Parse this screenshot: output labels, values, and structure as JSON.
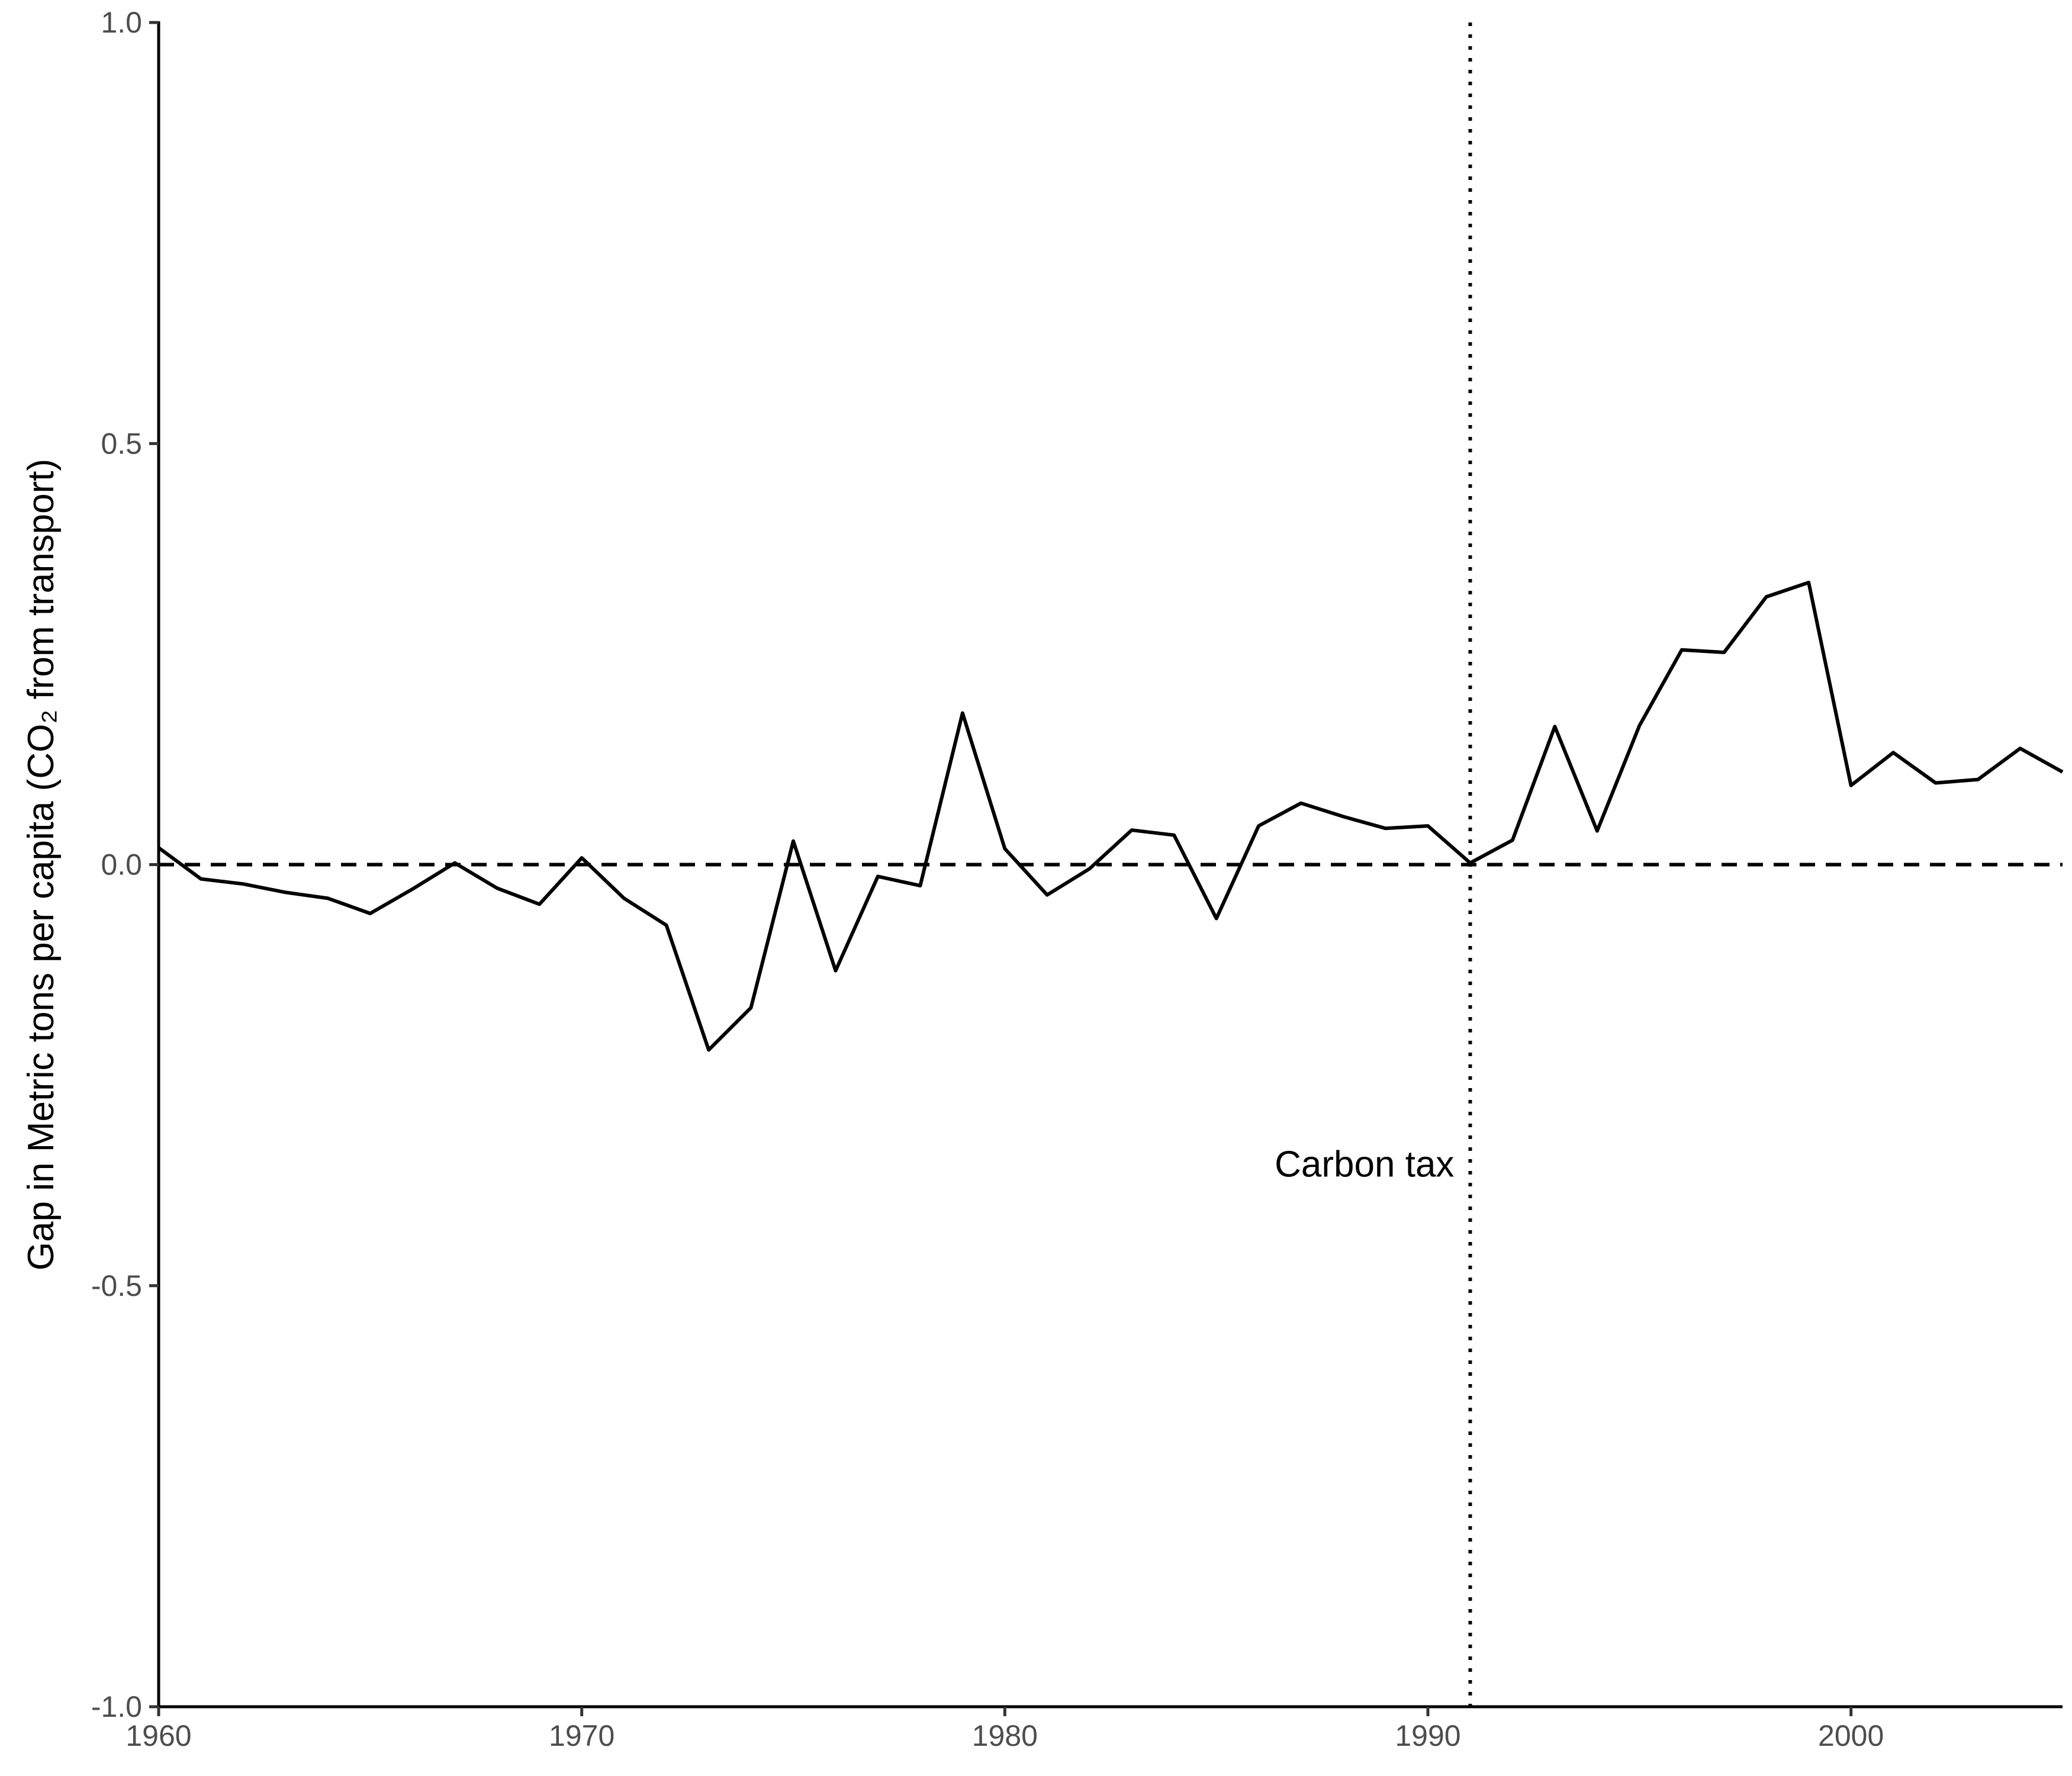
{
  "chart_data": {
    "type": "line",
    "title": "",
    "xlabel": "",
    "ylabel": "Gap in Metric tons per capita (CO₂ from transport)",
    "xlim": [
      1960,
      2005
    ],
    "ylim": [
      -1.0,
      1.0
    ],
    "x_ticks": [
      1960,
      1970,
      1980,
      1990,
      2000
    ],
    "x_tick_labels": [
      "1960",
      "1970",
      "1980",
      "1990",
      "2000"
    ],
    "y_ticks": [
      -1.0,
      -0.5,
      0.0,
      0.5,
      1.0
    ],
    "y_tick_labels": [
      "-1.0",
      "-0.5",
      "0.0",
      "0.5",
      "1.0"
    ],
    "grid": false,
    "legend": "none",
    "reference_lines": {
      "horizontal_dashed_y": 0.0,
      "vertical_dotted_x": 1991
    },
    "annotation": {
      "text": "Carbon tax",
      "x": 1988.5,
      "y": -0.355
    },
    "series": [
      {
        "x": [
          1960,
          1961,
          1962,
          1963,
          1964,
          1965,
          1966,
          1967,
          1968,
          1969,
          1970,
          1971,
          1972,
          1973,
          1974,
          1975,
          1976,
          1977,
          1978,
          1979,
          1980,
          1981,
          1982,
          1983,
          1984,
          1985,
          1986,
          1987,
          1988,
          1989,
          1990,
          1991,
          1992,
          1993,
          1994,
          1995,
          1996,
          1997,
          1998,
          1999,
          2000,
          2001,
          2002,
          2003,
          2004,
          2005
        ],
        "values": [
          0.02,
          -0.017,
          -0.023,
          -0.033,
          -0.04,
          -0.058,
          -0.029,
          0.002,
          -0.028,
          -0.047,
          0.008,
          -0.04,
          -0.072,
          -0.22,
          -0.17,
          0.028,
          -0.126,
          -0.014,
          -0.025,
          0.18,
          0.019,
          -0.036,
          -0.005,
          0.041,
          0.035,
          -0.064,
          0.046,
          0.073,
          0.057,
          0.043,
          0.046,
          0.002,
          0.029,
          0.164,
          0.04,
          0.165,
          0.255,
          0.252,
          0.318,
          0.335,
          0.094,
          0.133,
          0.097,
          0.101,
          0.138,
          0.11
        ]
      }
    ]
  }
}
